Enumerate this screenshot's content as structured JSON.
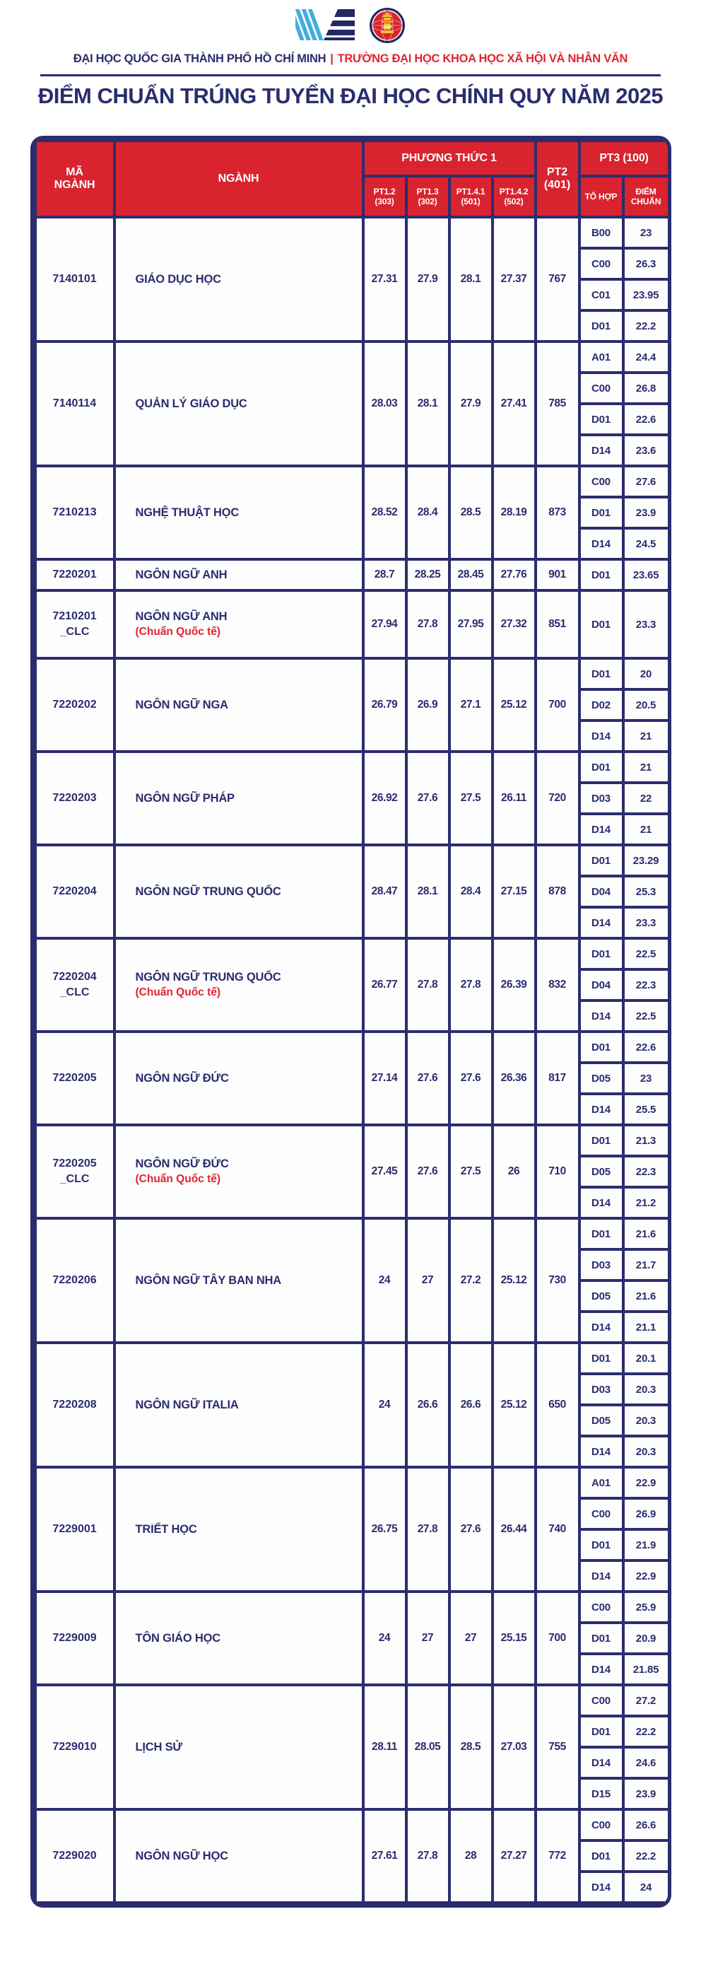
{
  "page": {
    "org_left": "ĐẠI HỌC QUỐC GIA THÀNH PHỐ HỒ CHÍ MINH",
    "org_sep": "|",
    "org_right": "TRƯỜNG ĐẠI HỌC KHOA HỌC XÃ HỘI VÀ NHÂN VĂN",
    "title": "ĐIỂM CHUẨN TRÚNG TUYỂN ĐẠI HỌC CHÍNH QUY NĂM 2025"
  },
  "icons": {
    "left_logo": "vnu-hcm-stripes-logo",
    "right_logo": "ussh-round-emblem"
  },
  "colors": {
    "navy": "#2b2d6e",
    "red": "#d9232e",
    "note_red": "#e02530",
    "logo_blue": "#41aede",
    "logo_gold": "#f2c231"
  },
  "table": {
    "headers": {
      "code": "MÃ\nNGÀNH",
      "major": "NGÀNH",
      "method1": "PHƯƠNG THỨC 1",
      "method1_subs": [
        "PT1.2\n(303)",
        "PT1.3\n(302)",
        "PT1.4.1\n(501)",
        "PT1.4.2\n(502)"
      ],
      "pt2": "PT2\n(401)",
      "pt3": "PT3 (100)",
      "pt3_subs": [
        "TỔ HỢP",
        "ĐIỂM\nCHUẨN"
      ]
    },
    "rows": [
      {
        "code": "7140101",
        "name": "GIÁO DỤC HỌC",
        "note": "",
        "pt12": "27.31",
        "pt13": "27.9",
        "pt141": "28.1",
        "pt142": "27.37",
        "pt2": "767",
        "combos": [
          [
            "B00",
            "23"
          ],
          [
            "C00",
            "26.3"
          ],
          [
            "C01",
            "23.95"
          ],
          [
            "D01",
            "22.2"
          ]
        ]
      },
      {
        "code": "7140114",
        "name": "QUẢN LÝ GIÁO DỤC",
        "note": "",
        "pt12": "28.03",
        "pt13": "28.1",
        "pt141": "27.9",
        "pt142": "27.41",
        "pt2": "785",
        "combos": [
          [
            "A01",
            "24.4"
          ],
          [
            "C00",
            "26.8"
          ],
          [
            "D01",
            "22.6"
          ],
          [
            "D14",
            "23.6"
          ]
        ]
      },
      {
        "code": "7210213",
        "name": "NGHỆ THUẬT HỌC",
        "note": "",
        "pt12": "28.52",
        "pt13": "28.4",
        "pt141": "28.5",
        "pt142": "28.19",
        "pt2": "873",
        "combos": [
          [
            "C00",
            "27.6"
          ],
          [
            "D01",
            "23.9"
          ],
          [
            "D14",
            "24.5"
          ]
        ]
      },
      {
        "code": "7220201",
        "name": "NGÔN NGỮ ANH",
        "note": "",
        "pt12": "28.7",
        "pt13": "28.25",
        "pt141": "28.45",
        "pt142": "27.76",
        "pt2": "901",
        "combos": [
          [
            "D01",
            "23.65"
          ]
        ]
      },
      {
        "code": "7210201\n_CLC",
        "name": "NGÔN NGỮ ANH",
        "note": "(Chuẩn Quốc tế)",
        "pt12": "27.94",
        "pt13": "27.8",
        "pt141": "27.95",
        "pt142": "27.32",
        "pt2": "851",
        "combos": [
          [
            "D01",
            "23.3"
          ]
        ]
      },
      {
        "code": "7220202",
        "name": "NGÔN NGỮ NGA",
        "note": "",
        "pt12": "26.79",
        "pt13": "26.9",
        "pt141": "27.1",
        "pt142": "25.12",
        "pt2": "700",
        "combos": [
          [
            "D01",
            "20"
          ],
          [
            "D02",
            "20.5"
          ],
          [
            "D14",
            "21"
          ]
        ]
      },
      {
        "code": "7220203",
        "name": "NGÔN NGỮ PHÁP",
        "note": "",
        "pt12": "26.92",
        "pt13": "27.6",
        "pt141": "27.5",
        "pt142": "26.11",
        "pt2": "720",
        "combos": [
          [
            "D01",
            "21"
          ],
          [
            "D03",
            "22"
          ],
          [
            "D14",
            "21"
          ]
        ]
      },
      {
        "code": "7220204",
        "name": "NGÔN NGỮ TRUNG QUỐC",
        "note": "",
        "pt12": "28.47",
        "pt13": "28.1",
        "pt141": "28.4",
        "pt142": "27.15",
        "pt2": "878",
        "combos": [
          [
            "D01",
            "23.29"
          ],
          [
            "D04",
            "25.3"
          ],
          [
            "D14",
            "23.3"
          ]
        ]
      },
      {
        "code": "7220204\n_CLC",
        "name": "NGÔN NGỮ TRUNG QUỐC",
        "note": "(Chuẩn Quốc tế)",
        "pt12": "26.77",
        "pt13": "27.8",
        "pt141": "27.8",
        "pt142": "26.39",
        "pt2": "832",
        "combos": [
          [
            "D01",
            "22.5"
          ],
          [
            "D04",
            "22.3"
          ],
          [
            "D14",
            "22.5"
          ]
        ]
      },
      {
        "code": "7220205",
        "name": "NGÔN NGỮ ĐỨC",
        "note": "",
        "pt12": "27.14",
        "pt13": "27.6",
        "pt141": "27.6",
        "pt142": "26.36",
        "pt2": "817",
        "combos": [
          [
            "D01",
            "22.6"
          ],
          [
            "D05",
            "23"
          ],
          [
            "D14",
            "25.5"
          ]
        ]
      },
      {
        "code": "7220205\n_CLC",
        "name": "NGÔN NGỮ ĐỨC",
        "note": "(Chuẩn Quốc tế)",
        "pt12": "27.45",
        "pt13": "27.6",
        "pt141": "27.5",
        "pt142": "26",
        "pt2": "710",
        "combos": [
          [
            "D01",
            "21.3"
          ],
          [
            "D05",
            "22.3"
          ],
          [
            "D14",
            "21.2"
          ]
        ]
      },
      {
        "code": "7220206",
        "name": "NGÔN NGỮ TÂY BAN NHA",
        "note": "",
        "pt12": "24",
        "pt13": "27",
        "pt141": "27.2",
        "pt142": "25.12",
        "pt2": "730",
        "combos": [
          [
            "D01",
            "21.6"
          ],
          [
            "D03",
            "21.7"
          ],
          [
            "D05",
            "21.6"
          ],
          [
            "D14",
            "21.1"
          ]
        ]
      },
      {
        "code": "7220208",
        "name": "NGÔN NGỮ ITALIA",
        "note": "",
        "pt12": "24",
        "pt13": "26.6",
        "pt141": "26.6",
        "pt142": "25.12",
        "pt2": "650",
        "combos": [
          [
            "D01",
            "20.1"
          ],
          [
            "D03",
            "20.3"
          ],
          [
            "D05",
            "20.3"
          ],
          [
            "D14",
            "20.3"
          ]
        ]
      },
      {
        "code": "7229001",
        "name": "TRIẾT HỌC",
        "note": "",
        "pt12": "26.75",
        "pt13": "27.8",
        "pt141": "27.6",
        "pt142": "26.44",
        "pt2": "740",
        "combos": [
          [
            "A01",
            "22.9"
          ],
          [
            "C00",
            "26.9"
          ],
          [
            "D01",
            "21.9"
          ],
          [
            "D14",
            "22.9"
          ]
        ]
      },
      {
        "code": "7229009",
        "name": "TÔN GIÁO HỌC",
        "note": "",
        "pt12": "24",
        "pt13": "27",
        "pt141": "27",
        "pt142": "25.15",
        "pt2": "700",
        "combos": [
          [
            "C00",
            "25.9"
          ],
          [
            "D01",
            "20.9"
          ],
          [
            "D14",
            "21.85"
          ]
        ]
      },
      {
        "code": "7229010",
        "name": "LỊCH SỬ",
        "note": "",
        "pt12": "28.11",
        "pt13": "28.05",
        "pt141": "28.5",
        "pt142": "27.03",
        "pt2": "755",
        "combos": [
          [
            "C00",
            "27.2"
          ],
          [
            "D01",
            "22.2"
          ],
          [
            "D14",
            "24.6"
          ],
          [
            "D15",
            "23.9"
          ]
        ]
      },
      {
        "code": "7229020",
        "name": "NGÔN NGỮ HỌC",
        "note": "",
        "pt12": "27.61",
        "pt13": "27.8",
        "pt141": "28",
        "pt142": "27.27",
        "pt2": "772",
        "combos": [
          [
            "C00",
            "26.6"
          ],
          [
            "D01",
            "22.2"
          ],
          [
            "D14",
            "24"
          ]
        ]
      }
    ]
  }
}
